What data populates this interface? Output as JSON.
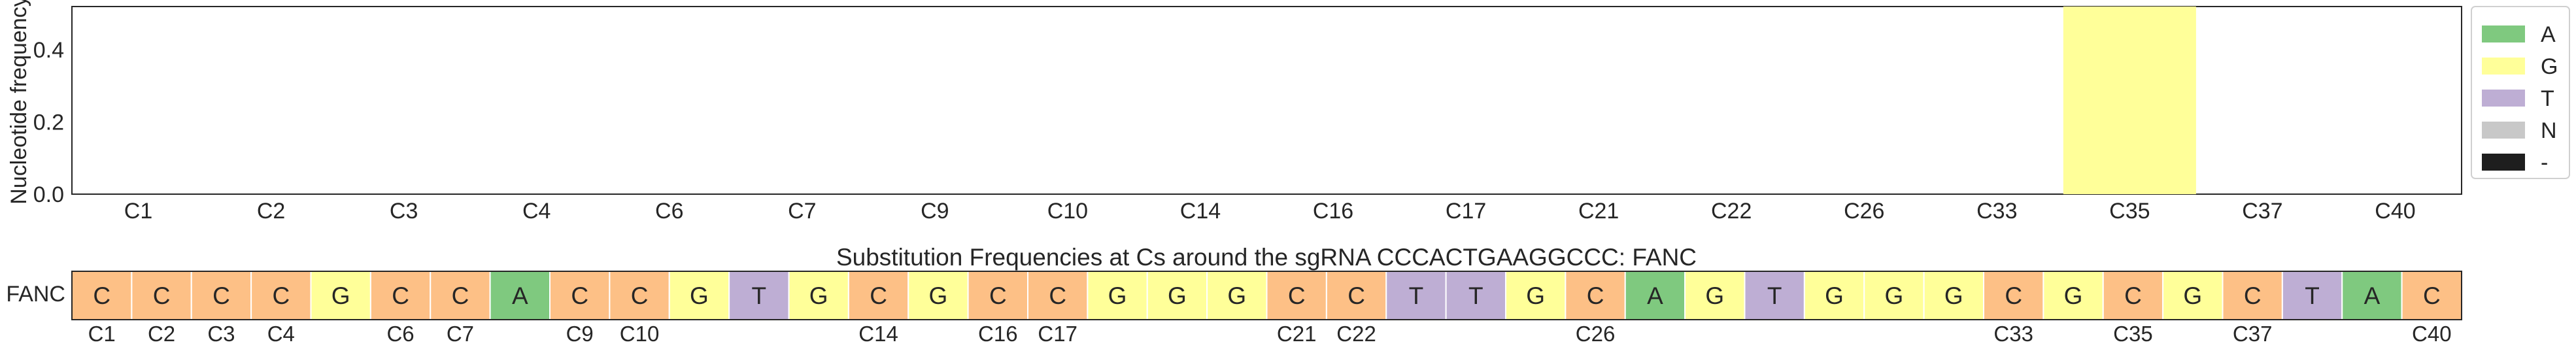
{
  "chart_data": {
    "type": "bar",
    "title": "Substitution Frequencies at Cs around the sgRNA CCCACTGAAGGCCC: FANC",
    "ylabel": "Nucleotide frequency",
    "xlabel": "",
    "ylim": [
      0,
      0.52
    ],
    "yticks": [
      "0.0",
      "0.2",
      "0.4"
    ],
    "ytick_values": [
      0.0,
      0.2,
      0.4
    ],
    "categories": [
      "C1",
      "C2",
      "C3",
      "C4",
      "C6",
      "C7",
      "C9",
      "C10",
      "C14",
      "C16",
      "C17",
      "C21",
      "C22",
      "C26",
      "C33",
      "C35",
      "C37",
      "C40"
    ],
    "series": [
      {
        "name": "A",
        "values": [
          0,
          0,
          0,
          0,
          0,
          0,
          0,
          0,
          0,
          0,
          0,
          0,
          0,
          0,
          0,
          0,
          0,
          0
        ]
      },
      {
        "name": "G",
        "values": [
          0,
          0,
          0,
          0,
          0,
          0,
          0,
          0,
          0,
          0,
          0,
          0,
          0,
          0,
          0,
          0.52,
          0,
          0
        ]
      },
      {
        "name": "T",
        "values": [
          0,
          0,
          0,
          0,
          0,
          0,
          0,
          0,
          0,
          0,
          0,
          0,
          0,
          0,
          0,
          0,
          0,
          0
        ]
      },
      {
        "name": "N",
        "values": [
          0,
          0,
          0,
          0,
          0,
          0,
          0,
          0,
          0,
          0,
          0,
          0,
          0,
          0,
          0,
          0,
          0,
          0
        ]
      },
      {
        "name": "-",
        "values": [
          0,
          0,
          0,
          0,
          0,
          0,
          0,
          0,
          0,
          0,
          0,
          0,
          0,
          0,
          0,
          0,
          0,
          0
        ]
      }
    ],
    "legend": {
      "position": "right",
      "entries": [
        {
          "label": "A",
          "color": "#7fc97f"
        },
        {
          "label": "G",
          "color": "#ffff99"
        },
        {
          "label": "T",
          "color": "#beaed4"
        },
        {
          "label": "N",
          "color": "#c8c8c8"
        },
        {
          "label": "-",
          "color": "#1e1e1e"
        }
      ]
    },
    "grid": false,
    "sequence": {
      "row_label": "FANC",
      "bases": [
        "C",
        "C",
        "C",
        "C",
        "G",
        "C",
        "C",
        "A",
        "C",
        "C",
        "G",
        "T",
        "G",
        "C",
        "G",
        "C",
        "C",
        "G",
        "G",
        "G",
        "C",
        "C",
        "T",
        "T",
        "G",
        "C",
        "A",
        "G",
        "T",
        "G",
        "G",
        "G",
        "C",
        "G",
        "C",
        "G",
        "C",
        "T",
        "A",
        "C"
      ],
      "c_labels": [
        "C1",
        "C2",
        "C3",
        "C4",
        "",
        "C6",
        "C7",
        "",
        "C9",
        "C10",
        "",
        "",
        "",
        "C14",
        "",
        "C16",
        "C17",
        "",
        "",
        "",
        "C21",
        "C22",
        "",
        "",
        "",
        "C26",
        "",
        "",
        "",
        "",
        "",
        "",
        "C33",
        "",
        "C35",
        "",
        "C37",
        "",
        "",
        "C40"
      ]
    },
    "base_colors": {
      "A": "#7fc97f",
      "C": "#fdc086",
      "G": "#ffff99",
      "T": "#beaed4",
      "N": "#c8c8c8",
      "-": "#1e1e1e"
    }
  }
}
